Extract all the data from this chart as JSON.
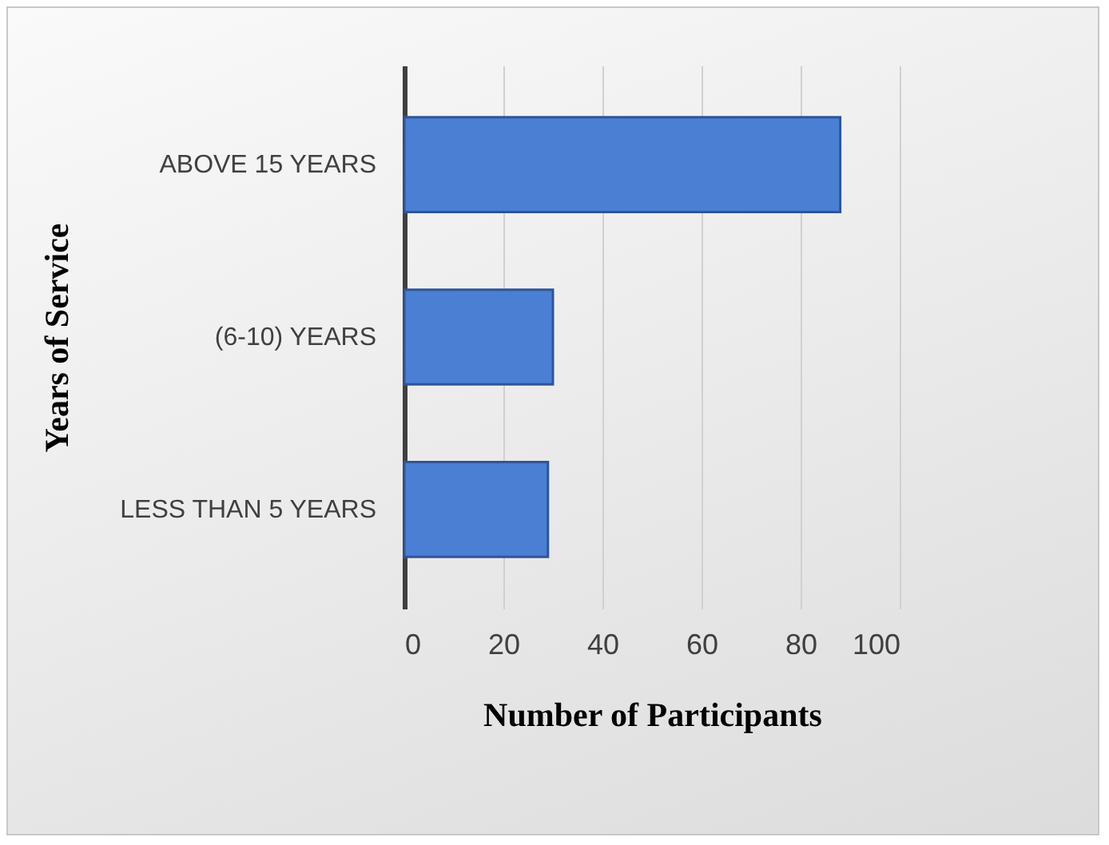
{
  "chart_data": {
    "type": "bar",
    "orientation": "horizontal",
    "xlabel": "Number of Participants",
    "ylabel": "Years of Service",
    "categories": [
      "ABOVE 15 YEARS",
      "(6-10) YEARS",
      "LESS THAN 5 YEARS"
    ],
    "values": [
      88,
      30,
      29
    ],
    "color": "#4a7fd4",
    "xlim": [
      0,
      100
    ],
    "xticks": [
      0,
      20,
      40,
      60,
      80,
      100
    ],
    "grid": "x"
  }
}
